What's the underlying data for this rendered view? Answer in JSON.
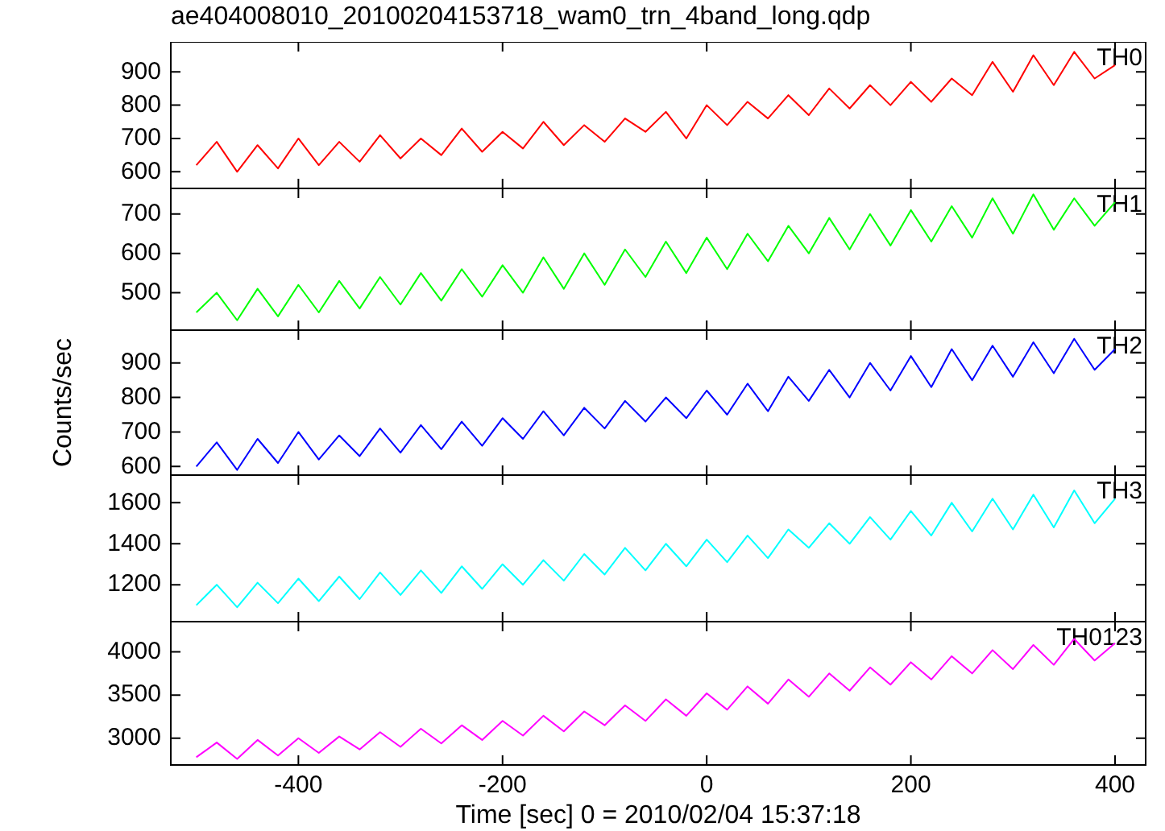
{
  "chart_data": [
    {
      "type": "line",
      "title": "ae404008010_20100204153718_wam0_trn_4band_long.qdp",
      "x": [
        -500,
        -480,
        -460,
        -440,
        -420,
        -400,
        -380,
        -360,
        -340,
        -320,
        -300,
        -280,
        -260,
        -240,
        -220,
        -200,
        -180,
        -160,
        -140,
        -120,
        -100,
        -80,
        -60,
        -40,
        -20,
        0,
        20,
        40,
        60,
        80,
        100,
        120,
        140,
        160,
        180,
        200,
        220,
        240,
        260,
        280,
        300,
        320,
        340,
        360,
        380,
        400
      ],
      "xlim": [
        -525,
        430
      ],
      "xticks": [
        -400,
        -200,
        0,
        200,
        400
      ],
      "ylim": [
        550,
        990
      ],
      "yticks": [
        600,
        700,
        800,
        900
      ],
      "tick_labels": "y",
      "series": [
        {
          "name": "TH0",
          "color": "#ff0000",
          "values": [
            620,
            690,
            600,
            680,
            610,
            700,
            620,
            690,
            630,
            710,
            640,
            700,
            650,
            730,
            660,
            720,
            670,
            750,
            680,
            740,
            690,
            760,
            720,
            780,
            700,
            800,
            740,
            810,
            760,
            830,
            770,
            850,
            790,
            860,
            800,
            870,
            810,
            880,
            830,
            930,
            840,
            950,
            860,
            960,
            880,
            920
          ]
        }
      ]
    },
    {
      "type": "line",
      "x": [
        -500,
        -480,
        -460,
        -440,
        -420,
        -400,
        -380,
        -360,
        -340,
        -320,
        -300,
        -280,
        -260,
        -240,
        -220,
        -200,
        -180,
        -160,
        -140,
        -120,
        -100,
        -80,
        -60,
        -40,
        -20,
        0,
        20,
        40,
        60,
        80,
        100,
        120,
        140,
        160,
        180,
        200,
        220,
        240,
        260,
        280,
        300,
        320,
        340,
        360,
        380,
        400
      ],
      "xlim": [
        -525,
        430
      ],
      "xticks": [
        -400,
        -200,
        0,
        200,
        400
      ],
      "ylim": [
        405,
        765
      ],
      "yticks": [
        500,
        600,
        700
      ],
      "tick_labels": "y",
      "series": [
        {
          "name": "TH1",
          "color": "#00ff00",
          "values": [
            450,
            500,
            430,
            510,
            440,
            520,
            450,
            530,
            460,
            540,
            470,
            550,
            480,
            560,
            490,
            570,
            500,
            590,
            510,
            600,
            520,
            610,
            540,
            630,
            550,
            640,
            560,
            650,
            580,
            670,
            600,
            690,
            610,
            700,
            620,
            710,
            630,
            720,
            640,
            740,
            650,
            750,
            660,
            740,
            670,
            730
          ]
        }
      ]
    },
    {
      "type": "line",
      "ylabel": "Counts/sec",
      "x": [
        -500,
        -480,
        -460,
        -440,
        -420,
        -400,
        -380,
        -360,
        -340,
        -320,
        -300,
        -280,
        -260,
        -240,
        -220,
        -200,
        -180,
        -160,
        -140,
        -120,
        -100,
        -80,
        -60,
        -40,
        -20,
        0,
        20,
        40,
        60,
        80,
        100,
        120,
        140,
        160,
        180,
        200,
        220,
        240,
        260,
        280,
        300,
        320,
        340,
        360,
        380,
        400
      ],
      "xlim": [
        -525,
        430
      ],
      "xticks": [
        -400,
        -200,
        0,
        200,
        400
      ],
      "ylim": [
        575,
        995
      ],
      "yticks": [
        600,
        700,
        800,
        900
      ],
      "tick_labels": "y",
      "series": [
        {
          "name": "TH2",
          "color": "#0000ff",
          "values": [
            600,
            670,
            590,
            680,
            610,
            700,
            620,
            690,
            630,
            710,
            640,
            720,
            650,
            730,
            660,
            740,
            680,
            760,
            690,
            770,
            710,
            790,
            730,
            800,
            740,
            820,
            750,
            840,
            760,
            860,
            790,
            880,
            800,
            900,
            820,
            920,
            830,
            940,
            850,
            950,
            860,
            960,
            870,
            970,
            880,
            940
          ]
        }
      ]
    },
    {
      "type": "line",
      "x": [
        -500,
        -480,
        -460,
        -440,
        -420,
        -400,
        -380,
        -360,
        -340,
        -320,
        -300,
        -280,
        -260,
        -240,
        -220,
        -200,
        -180,
        -160,
        -140,
        -120,
        -100,
        -80,
        -60,
        -40,
        -20,
        0,
        20,
        40,
        60,
        80,
        100,
        120,
        140,
        160,
        180,
        200,
        220,
        240,
        260,
        280,
        300,
        320,
        340,
        360,
        380,
        400
      ],
      "xlim": [
        -525,
        430
      ],
      "xticks": [
        -400,
        -200,
        0,
        200,
        400
      ],
      "ylim": [
        1020,
        1735
      ],
      "yticks": [
        1200,
        1400,
        1600
      ],
      "tick_labels": "y",
      "series": [
        {
          "name": "TH3",
          "color": "#00ffff",
          "values": [
            1100,
            1200,
            1090,
            1210,
            1110,
            1230,
            1120,
            1240,
            1130,
            1260,
            1150,
            1270,
            1160,
            1290,
            1180,
            1300,
            1200,
            1320,
            1220,
            1350,
            1250,
            1380,
            1270,
            1400,
            1290,
            1420,
            1310,
            1440,
            1330,
            1470,
            1380,
            1500,
            1400,
            1530,
            1420,
            1560,
            1440,
            1600,
            1460,
            1620,
            1470,
            1640,
            1480,
            1660,
            1500,
            1620
          ]
        }
      ]
    },
    {
      "type": "line",
      "xlabel": "Time [sec] 0 = 2010/02/04 15:37:18",
      "x": [
        -500,
        -480,
        -460,
        -440,
        -420,
        -400,
        -380,
        -360,
        -340,
        -320,
        -300,
        -280,
        -260,
        -240,
        -220,
        -200,
        -180,
        -160,
        -140,
        -120,
        -100,
        -80,
        -60,
        -40,
        -20,
        0,
        20,
        40,
        60,
        80,
        100,
        120,
        140,
        160,
        180,
        200,
        220,
        240,
        260,
        280,
        300,
        320,
        340,
        360,
        380,
        400
      ],
      "xlim": [
        -525,
        430
      ],
      "xticks": [
        -400,
        -200,
        0,
        200,
        400
      ],
      "ylim": [
        2690,
        4350
      ],
      "yticks": [
        3000,
        3500,
        4000
      ],
      "series": [
        {
          "name": "TH0123",
          "color": "#ff00ff",
          "values": [
            2780,
            2950,
            2760,
            2980,
            2800,
            3000,
            2830,
            3020,
            2870,
            3070,
            2900,
            3110,
            2940,
            3150,
            2980,
            3200,
            3030,
            3260,
            3080,
            3310,
            3150,
            3380,
            3200,
            3450,
            3260,
            3520,
            3330,
            3600,
            3400,
            3680,
            3480,
            3750,
            3550,
            3820,
            3620,
            3880,
            3680,
            3950,
            3750,
            4020,
            3800,
            4080,
            3850,
            4150,
            3900,
            4100
          ]
        }
      ]
    }
  ]
}
